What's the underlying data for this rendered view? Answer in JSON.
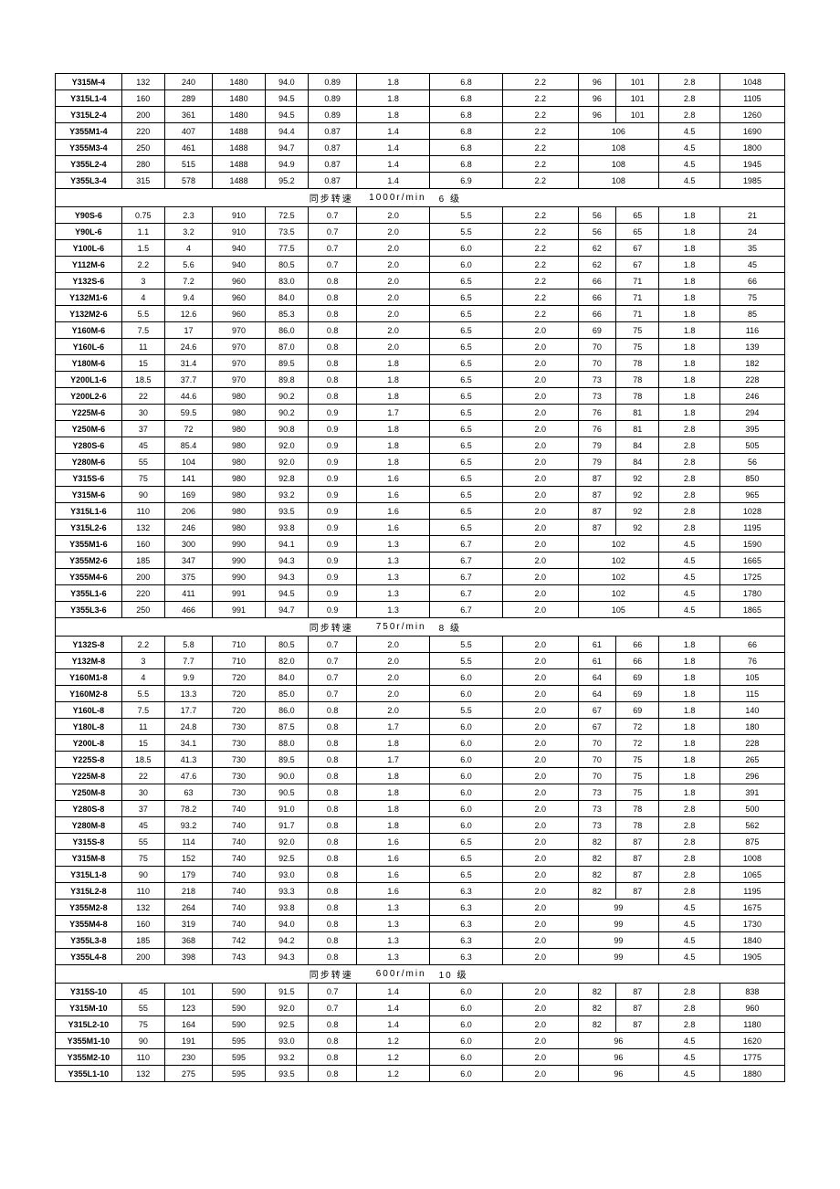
{
  "sections": [
    {
      "header": null,
      "rows": [
        {
          "m": "Y315M-4",
          "c": [
            "132",
            "240",
            "1480",
            "94.0",
            "0.89",
            "1.8",
            "6.8",
            "2.2",
            "96",
            "101",
            "2.8",
            "1048"
          ],
          "merge": false
        },
        {
          "m": "Y315L1-4",
          "c": [
            "160",
            "289",
            "1480",
            "94.5",
            "0.89",
            "1.8",
            "6.8",
            "2.2",
            "96",
            "101",
            "2.8",
            "1105"
          ],
          "merge": false
        },
        {
          "m": "Y315L2-4",
          "c": [
            "200",
            "361",
            "1480",
            "94.5",
            "0.89",
            "1.8",
            "6.8",
            "2.2",
            "96",
            "101",
            "2.8",
            "1260"
          ],
          "merge": false
        },
        {
          "m": "Y355M1-4",
          "c": [
            "220",
            "407",
            "1488",
            "94.4",
            "0.87",
            "1.4",
            "6.8",
            "2.2",
            "106",
            "",
            "4.5",
            "1690"
          ],
          "merge": true
        },
        {
          "m": "Y355M3-4",
          "c": [
            "250",
            "461",
            "1488",
            "94.7",
            "0.87",
            "1.4",
            "6.8",
            "2.2",
            "108",
            "",
            "4.5",
            "1800"
          ],
          "merge": true
        },
        {
          "m": "Y355L2-4",
          "c": [
            "280",
            "515",
            "1488",
            "94.9",
            "0.87",
            "1.4",
            "6.8",
            "2.2",
            "108",
            "",
            "4.5",
            "1945"
          ],
          "merge": true
        },
        {
          "m": "Y355L3-4",
          "c": [
            "315",
            "578",
            "1488",
            "95.2",
            "0.87",
            "1.4",
            "6.9",
            "2.2",
            "108",
            "",
            "4.5",
            "1985"
          ],
          "merge": true
        }
      ]
    },
    {
      "header": {
        "a": "同步转速",
        "b": "1000r/min",
        "c": "6 级"
      },
      "rows": [
        {
          "m": "Y90S-6",
          "c": [
            "0.75",
            "2.3",
            "910",
            "72.5",
            "0.7",
            "2.0",
            "5.5",
            "2.2",
            "56",
            "65",
            "1.8",
            "21"
          ],
          "merge": false
        },
        {
          "m": "Y90L-6",
          "c": [
            "1.1",
            "3.2",
            "910",
            "73.5",
            "0.7",
            "2.0",
            "5.5",
            "2.2",
            "56",
            "65",
            "1.8",
            "24"
          ],
          "merge": false
        },
        {
          "m": "Y100L-6",
          "c": [
            "1.5",
            "4",
            "940",
            "77.5",
            "0.7",
            "2.0",
            "6.0",
            "2.2",
            "62",
            "67",
            "1.8",
            "35"
          ],
          "merge": false
        },
        {
          "m": "Y112M-6",
          "c": [
            "2.2",
            "5.6",
            "940",
            "80.5",
            "0.7",
            "2.0",
            "6.0",
            "2.2",
            "62",
            "67",
            "1.8",
            "45"
          ],
          "merge": false
        },
        {
          "m": "Y132S-6",
          "c": [
            "3",
            "7.2",
            "960",
            "83.0",
            "0.8",
            "2.0",
            "6.5",
            "2.2",
            "66",
            "71",
            "1.8",
            "66"
          ],
          "merge": false
        },
        {
          "m": "Y132M1-6",
          "c": [
            "4",
            "9.4",
            "960",
            "84.0",
            "0.8",
            "2.0",
            "6.5",
            "2.2",
            "66",
            "71",
            "1.8",
            "75"
          ],
          "merge": false
        },
        {
          "m": "Y132M2-6",
          "c": [
            "5.5",
            "12.6",
            "960",
            "85.3",
            "0.8",
            "2.0",
            "6.5",
            "2.2",
            "66",
            "71",
            "1.8",
            "85"
          ],
          "merge": false
        },
        {
          "m": "Y160M-6",
          "c": [
            "7.5",
            "17",
            "970",
            "86.0",
            "0.8",
            "2.0",
            "6.5",
            "2.0",
            "69",
            "75",
            "1.8",
            "116"
          ],
          "merge": false
        },
        {
          "m": "Y160L-6",
          "c": [
            "11",
            "24.6",
            "970",
            "87.0",
            "0.8",
            "2.0",
            "6.5",
            "2.0",
            "70",
            "75",
            "1.8",
            "139"
          ],
          "merge": false
        },
        {
          "m": "Y180M-6",
          "c": [
            "15",
            "31.4",
            "970",
            "89.5",
            "0.8",
            "1.8",
            "6.5",
            "2.0",
            "70",
            "78",
            "1.8",
            "182"
          ],
          "merge": false
        },
        {
          "m": "Y200L1-6",
          "c": [
            "18.5",
            "37.7",
            "970",
            "89.8",
            "0.8",
            "1.8",
            "6.5",
            "2.0",
            "73",
            "78",
            "1.8",
            "228"
          ],
          "merge": false
        },
        {
          "m": "Y200L2-6",
          "c": [
            "22",
            "44.6",
            "980",
            "90.2",
            "0.8",
            "1.8",
            "6.5",
            "2.0",
            "73",
            "78",
            "1.8",
            "246"
          ],
          "merge": false
        },
        {
          "m": "Y225M-6",
          "c": [
            "30",
            "59.5",
            "980",
            "90.2",
            "0.9",
            "1.7",
            "6.5",
            "2.0",
            "76",
            "81",
            "1.8",
            "294"
          ],
          "merge": false
        },
        {
          "m": "Y250M-6",
          "c": [
            "37",
            "72",
            "980",
            "90.8",
            "0.9",
            "1.8",
            "6.5",
            "2.0",
            "76",
            "81",
            "2.8",
            "395"
          ],
          "merge": false
        },
        {
          "m": "Y280S-6",
          "c": [
            "45",
            "85.4",
            "980",
            "92.0",
            "0.9",
            "1.8",
            "6.5",
            "2.0",
            "79",
            "84",
            "2.8",
            "505"
          ],
          "merge": false
        },
        {
          "m": "Y280M-6",
          "c": [
            "55",
            "104",
            "980",
            "92.0",
            "0.9",
            "1.8",
            "6.5",
            "2.0",
            "79",
            "84",
            "2.8",
            "56"
          ],
          "merge": false
        },
        {
          "m": "Y315S-6",
          "c": [
            "75",
            "141",
            "980",
            "92.8",
            "0.9",
            "1.6",
            "6.5",
            "2.0",
            "87",
            "92",
            "2.8",
            "850"
          ],
          "merge": false
        },
        {
          "m": "Y315M-6",
          "c": [
            "90",
            "169",
            "980",
            "93.2",
            "0.9",
            "1.6",
            "6.5",
            "2.0",
            "87",
            "92",
            "2.8",
            "965"
          ],
          "merge": false
        },
        {
          "m": "Y315L1-6",
          "c": [
            "110",
            "206",
            "980",
            "93.5",
            "0.9",
            "1.6",
            "6.5",
            "2.0",
            "87",
            "92",
            "2.8",
            "1028"
          ],
          "merge": false
        },
        {
          "m": "Y315L2-6",
          "c": [
            "132",
            "246",
            "980",
            "93.8",
            "0.9",
            "1.6",
            "6.5",
            "2.0",
            "87",
            "92",
            "2.8",
            "1195"
          ],
          "merge": false
        },
        {
          "m": "Y355M1-6",
          "c": [
            "160",
            "300",
            "990",
            "94.1",
            "0.9",
            "1.3",
            "6.7",
            "2.0",
            "102",
            "",
            "4.5",
            "1590"
          ],
          "merge": true
        },
        {
          "m": "Y355M2-6",
          "c": [
            "185",
            "347",
            "990",
            "94.3",
            "0.9",
            "1.3",
            "6.7",
            "2.0",
            "102",
            "",
            "4.5",
            "1665"
          ],
          "merge": true
        },
        {
          "m": "Y355M4-6",
          "c": [
            "200",
            "375",
            "990",
            "94.3",
            "0.9",
            "1.3",
            "6.7",
            "2.0",
            "102",
            "",
            "4.5",
            "1725"
          ],
          "merge": true
        },
        {
          "m": "Y355L1-6",
          "c": [
            "220",
            "411",
            "991",
            "94.5",
            "0.9",
            "1.3",
            "6.7",
            "2.0",
            "102",
            "",
            "4.5",
            "1780"
          ],
          "merge": true
        },
        {
          "m": "Y355L3-6",
          "c": [
            "250",
            "466",
            "991",
            "94.7",
            "0.9",
            "1.3",
            "6.7",
            "2.0",
            "105",
            "",
            "4.5",
            "1865"
          ],
          "merge": true
        }
      ]
    },
    {
      "header": {
        "a": "同步转速",
        "b": "750r/min",
        "c": "8 级"
      },
      "rows": [
        {
          "m": "Y132S-8",
          "c": [
            "2.2",
            "5.8",
            "710",
            "80.5",
            "0.7",
            "2.0",
            "5.5",
            "2.0",
            "61",
            "66",
            "1.8",
            "66"
          ],
          "merge": false
        },
        {
          "m": "Y132M-8",
          "c": [
            "3",
            "7.7",
            "710",
            "82.0",
            "0.7",
            "2.0",
            "5.5",
            "2.0",
            "61",
            "66",
            "1.8",
            "76"
          ],
          "merge": false
        },
        {
          "m": "Y160M1-8",
          "c": [
            "4",
            "9.9",
            "720",
            "84.0",
            "0.7",
            "2.0",
            "6.0",
            "2.0",
            "64",
            "69",
            "1.8",
            "105"
          ],
          "merge": false
        },
        {
          "m": "Y160M2-8",
          "c": [
            "5.5",
            "13.3",
            "720",
            "85.0",
            "0.7",
            "2.0",
            "6.0",
            "2.0",
            "64",
            "69",
            "1.8",
            "115"
          ],
          "merge": false
        },
        {
          "m": "Y160L-8",
          "c": [
            "7.5",
            "17.7",
            "720",
            "86.0",
            "0.8",
            "2.0",
            "5.5",
            "2.0",
            "67",
            "69",
            "1.8",
            "140"
          ],
          "merge": false
        },
        {
          "m": "Y180L-8",
          "c": [
            "11",
            "24.8",
            "730",
            "87.5",
            "0.8",
            "1.7",
            "6.0",
            "2.0",
            "67",
            "72",
            "1.8",
            "180"
          ],
          "merge": false
        },
        {
          "m": "Y200L-8",
          "c": [
            "15",
            "34.1",
            "730",
            "88.0",
            "0.8",
            "1.8",
            "6.0",
            "2.0",
            "70",
            "72",
            "1.8",
            "228"
          ],
          "merge": false
        },
        {
          "m": "Y225S-8",
          "c": [
            "18.5",
            "41.3",
            "730",
            "89.5",
            "0.8",
            "1.7",
            "6.0",
            "2.0",
            "70",
            "75",
            "1.8",
            "265"
          ],
          "merge": false
        },
        {
          "m": "Y225M-8",
          "c": [
            "22",
            "47.6",
            "730",
            "90.0",
            "0.8",
            "1.8",
            "6.0",
            "2.0",
            "70",
            "75",
            "1.8",
            "296"
          ],
          "merge": false
        },
        {
          "m": "Y250M-8",
          "c": [
            "30",
            "63",
            "730",
            "90.5",
            "0.8",
            "1.8",
            "6.0",
            "2.0",
            "73",
            "75",
            "1.8",
            "391"
          ],
          "merge": false
        },
        {
          "m": "Y280S-8",
          "c": [
            "37",
            "78.2",
            "740",
            "91.0",
            "0.8",
            "1.8",
            "6.0",
            "2.0",
            "73",
            "78",
            "2.8",
            "500"
          ],
          "merge": false
        },
        {
          "m": "Y280M-8",
          "c": [
            "45",
            "93.2",
            "740",
            "91.7",
            "0.8",
            "1.8",
            "6.0",
            "2.0",
            "73",
            "78",
            "2.8",
            "562"
          ],
          "merge": false
        },
        {
          "m": "Y315S-8",
          "c": [
            "55",
            "114",
            "740",
            "92.0",
            "0.8",
            "1.6",
            "6.5",
            "2.0",
            "82",
            "87",
            "2.8",
            "875"
          ],
          "merge": false
        },
        {
          "m": "Y315M-8",
          "c": [
            "75",
            "152",
            "740",
            "92.5",
            "0.8",
            "1.6",
            "6.5",
            "2.0",
            "82",
            "87",
            "2.8",
            "1008"
          ],
          "merge": false
        },
        {
          "m": "Y315L1-8",
          "c": [
            "90",
            "179",
            "740",
            "93.0",
            "0.8",
            "1.6",
            "6.5",
            "2.0",
            "82",
            "87",
            "2.8",
            "1065"
          ],
          "merge": false
        },
        {
          "m": "Y315L2-8",
          "c": [
            "110",
            "218",
            "740",
            "93.3",
            "0.8",
            "1.6",
            "6.3",
            "2.0",
            "82",
            "87",
            "2.8",
            "1195"
          ],
          "merge": false
        },
        {
          "m": "Y355M2-8",
          "c": [
            "132",
            "264",
            "740",
            "93.8",
            "0.8",
            "1.3",
            "6.3",
            "2.0",
            "99",
            "",
            "4.5",
            "1675"
          ],
          "merge": true
        },
        {
          "m": "Y355M4-8",
          "c": [
            "160",
            "319",
            "740",
            "94.0",
            "0.8",
            "1.3",
            "6.3",
            "2.0",
            "99",
            "",
            "4.5",
            "1730"
          ],
          "merge": true
        },
        {
          "m": "Y355L3-8",
          "c": [
            "185",
            "368",
            "742",
            "94.2",
            "0.8",
            "1.3",
            "6.3",
            "2.0",
            "99",
            "",
            "4.5",
            "1840"
          ],
          "merge": true
        },
        {
          "m": "Y355L4-8",
          "c": [
            "200",
            "398",
            "743",
            "94.3",
            "0.8",
            "1.3",
            "6.3",
            "2.0",
            "99",
            "",
            "4.5",
            "1905"
          ],
          "merge": true
        }
      ]
    },
    {
      "header": {
        "a": "同步转速",
        "b": "600r/min",
        "c": "10 级"
      },
      "rows": [
        {
          "m": "Y315S-10",
          "c": [
            "45",
            "101",
            "590",
            "91.5",
            "0.7",
            "1.4",
            "6.0",
            "2.0",
            "82",
            "87",
            "2.8",
            "838"
          ],
          "merge": false
        },
        {
          "m": "Y315M-10",
          "c": [
            "55",
            "123",
            "590",
            "92.0",
            "0.7",
            "1.4",
            "6.0",
            "2.0",
            "82",
            "87",
            "2.8",
            "960"
          ],
          "merge": false
        },
        {
          "m": "Y315L2-10",
          "c": [
            "75",
            "164",
            "590",
            "92.5",
            "0.8",
            "1.4",
            "6.0",
            "2.0",
            "82",
            "87",
            "2.8",
            "1180"
          ],
          "merge": false
        },
        {
          "m": "Y355M1-10",
          "c": [
            "90",
            "191",
            "595",
            "93.0",
            "0.8",
            "1.2",
            "6.0",
            "2.0",
            "96",
            "",
            "4.5",
            "1620"
          ],
          "merge": true
        },
        {
          "m": "Y355M2-10",
          "c": [
            "110",
            "230",
            "595",
            "93.2",
            "0.8",
            "1.2",
            "6.0",
            "2.0",
            "96",
            "",
            "4.5",
            "1775"
          ],
          "merge": true
        },
        {
          "m": "Y355L1-10",
          "c": [
            "132",
            "275",
            "595",
            "93.5",
            "0.8",
            "1.2",
            "6.0",
            "2.0",
            "96",
            "",
            "4.5",
            "1880"
          ],
          "merge": true
        }
      ]
    }
  ],
  "colClasses": [
    "c0",
    "c1",
    "c2",
    "c3",
    "c4",
    "c5",
    "c6",
    "c7",
    "c8",
    "c9",
    "c10",
    "c11",
    "c12"
  ]
}
